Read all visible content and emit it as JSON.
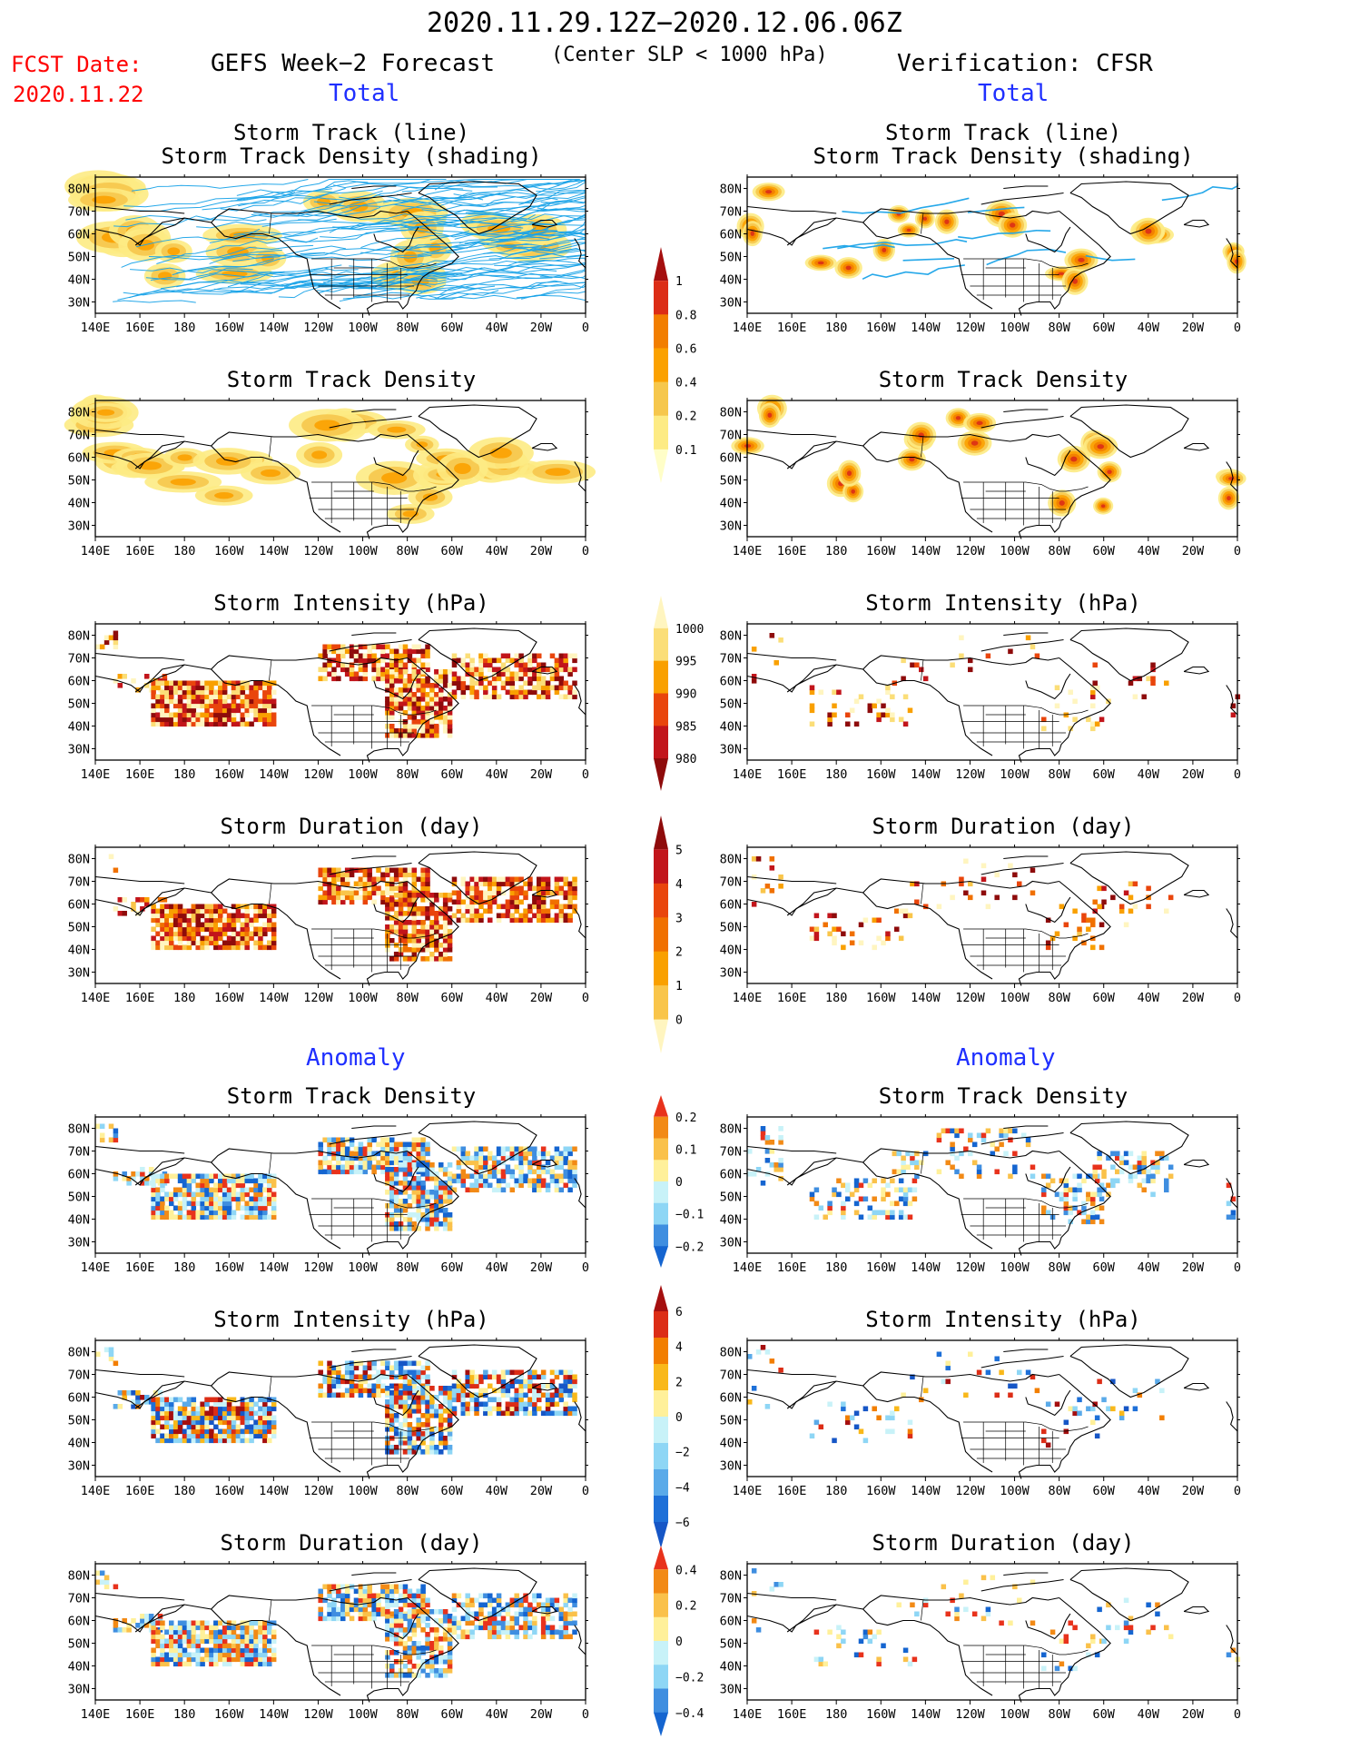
{
  "header": {
    "date_range": "2020.11.29.12Z−2020.12.06.06Z",
    "criterion": "(Center SLP < 1000 hPa)",
    "fcst_label": "FCST Date:",
    "fcst_date": "2020.11.22",
    "left_title": "GEFS Week−2 Forecast",
    "right_title": "Verification: CFSR"
  },
  "section_labels": {
    "total": "Total",
    "anomaly": "Anomaly"
  },
  "panel_titles": {
    "track_line": "Storm Track (line)",
    "track_shading": "Storm Track Density (shading)",
    "density": "Storm Track Density",
    "intensity": "Storm Intensity (hPa)",
    "duration": "Storm Duration (day)"
  },
  "axis": {
    "lon_ticks": [
      "140E",
      "160E",
      "180",
      "160W",
      "140W",
      "120W",
      "100W",
      "80W",
      "60W",
      "40W",
      "20W",
      "0"
    ],
    "lat_ticks": [
      "80N",
      "70N",
      "60N",
      "50N",
      "40N",
      "30N"
    ]
  },
  "colorbars": {
    "total_density": {
      "labels": [
        "1",
        "0.8",
        "0.6",
        "0.4",
        "0.2",
        "0.1"
      ],
      "colors": [
        "#a50f0f",
        "#dc2d16",
        "#f27e00",
        "#fba100",
        "#f6c74c",
        "#fdeb84",
        "#fffec8"
      ]
    },
    "total_intensity": {
      "labels": [
        "1000",
        "995",
        "990",
        "985",
        "980"
      ],
      "colors": [
        "#fff5c0",
        "#fbde78",
        "#f9a000",
        "#e9450c",
        "#c2151b",
        "#8e0b0b"
      ]
    },
    "total_duration": {
      "labels": [
        "5",
        "4",
        "3",
        "2",
        "1",
        "0"
      ],
      "colors": [
        "#8e0b0b",
        "#c2151b",
        "#e9450c",
        "#f07000",
        "#f9a000",
        "#f9c54a",
        "#fff5c0"
      ]
    },
    "anom_density": {
      "labels": [
        "0.2",
        "0.1",
        "0",
        "−0.1",
        "−0.2"
      ],
      "colors": [
        "#e8321c",
        "#f28a16",
        "#fac14a",
        "#fff09a",
        "#c8f2f8",
        "#8ed6f5",
        "#3f8ee0",
        "#1565d0"
      ]
    },
    "anom_intensity": {
      "labels": [
        "6",
        "4",
        "2",
        "0",
        "−2",
        "−4",
        "−6"
      ],
      "colors": [
        "#a50f0f",
        "#dc2d16",
        "#f27e00",
        "#f9b81a",
        "#fff09a",
        "#c8f2f8",
        "#8ed6f5",
        "#5aaae9",
        "#1e70d8",
        "#1656c6"
      ]
    },
    "anom_duration": {
      "labels": [
        "0.4",
        "0.2",
        "0",
        "−0.2",
        "−0.4"
      ],
      "colors": [
        "#e8321c",
        "#f28a16",
        "#fac14a",
        "#fff09a",
        "#c8f2f8",
        "#8ed6f5",
        "#3f8ee0",
        "#1565d0"
      ]
    }
  },
  "colors": {
    "ocean": "#ffffff",
    "coast": "#000000",
    "track_line": "#1aa3e8"
  },
  "chart_data": [
    {
      "type": "heatmap",
      "panel": "gefs-total-track",
      "title": "Storm Track (line) / Storm Track Density (shading)",
      "xlabel": "",
      "ylabel": "",
      "xlim": [
        "140E",
        "0"
      ],
      "ylim": [
        "25N",
        "85N"
      ],
      "series": [
        {
          "values": "forecast storm track lines over storm track density (ensemble)"
        }
      ]
    },
    {
      "type": "heatmap",
      "panel": "cfsr-total-track",
      "title": "Storm Track (line) / Storm Track Density (shading)",
      "xlabel": "",
      "ylabel": "",
      "xlim": [
        "140E",
        "0"
      ],
      "ylim": [
        "25N",
        "85N"
      ]
    },
    {
      "type": "heatmap",
      "panel": "gefs-total-density",
      "title": "Storm Track Density",
      "xlim": [
        "140E",
        "0"
      ],
      "ylim": [
        "25N",
        "85N"
      ]
    },
    {
      "type": "heatmap",
      "panel": "cfsr-total-density",
      "title": "Storm Track Density",
      "xlim": [
        "140E",
        "0"
      ],
      "ylim": [
        "25N",
        "85N"
      ]
    },
    {
      "type": "heatmap",
      "panel": "gefs-total-intensity",
      "title": "Storm Intensity (hPa)",
      "xlim": [
        "140E",
        "0"
      ],
      "ylim": [
        "25N",
        "85N"
      ]
    },
    {
      "type": "heatmap",
      "panel": "cfsr-total-intensity",
      "title": "Storm Intensity (hPa)",
      "xlim": [
        "140E",
        "0"
      ],
      "ylim": [
        "25N",
        "85N"
      ]
    },
    {
      "type": "heatmap",
      "panel": "gefs-total-duration",
      "title": "Storm Duration (day)",
      "xlim": [
        "140E",
        "0"
      ],
      "ylim": [
        "25N",
        "85N"
      ]
    },
    {
      "type": "heatmap",
      "panel": "cfsr-total-duration",
      "title": "Storm Duration (day)",
      "xlim": [
        "140E",
        "0"
      ],
      "ylim": [
        "25N",
        "85N"
      ]
    },
    {
      "type": "heatmap",
      "panel": "gefs-anom-density",
      "title": "Storm Track Density",
      "xlim": [
        "140E",
        "0"
      ],
      "ylim": [
        "25N",
        "85N"
      ]
    },
    {
      "type": "heatmap",
      "panel": "cfsr-anom-density",
      "title": "Storm Track Density",
      "xlim": [
        "140E",
        "0"
      ],
      "ylim": [
        "25N",
        "85N"
      ]
    },
    {
      "type": "heatmap",
      "panel": "gefs-anom-intensity",
      "title": "Storm Intensity (hPa)",
      "xlim": [
        "140E",
        "0"
      ],
      "ylim": [
        "25N",
        "85N"
      ]
    },
    {
      "type": "heatmap",
      "panel": "cfsr-anom-intensity",
      "title": "Storm Intensity (hPa)",
      "xlim": [
        "140E",
        "0"
      ],
      "ylim": [
        "25N",
        "85N"
      ]
    },
    {
      "type": "heatmap",
      "panel": "gefs-anom-duration",
      "title": "Storm Duration (day)",
      "xlim": [
        "140E",
        "0"
      ],
      "ylim": [
        "25N",
        "85N"
      ]
    },
    {
      "type": "heatmap",
      "panel": "cfsr-anom-duration",
      "title": "Storm Duration (day)",
      "xlim": [
        "140E",
        "0"
      ],
      "ylim": [
        "25N",
        "85N"
      ]
    }
  ]
}
